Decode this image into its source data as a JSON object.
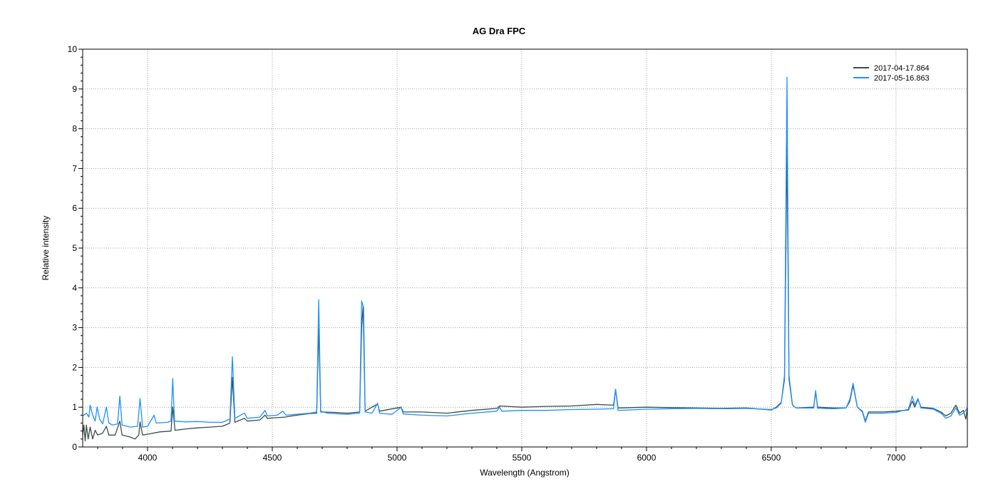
{
  "chart_data": {
    "type": "line",
    "title": "AG Dra   FPC",
    "xlabel": "Wavelength (Angstrom)",
    "ylabel": "Relative intensity",
    "xlim": [
      3740,
      7286
    ],
    "ylim": [
      0,
      10
    ],
    "xticks": [
      4000,
      4500,
      5000,
      5500,
      6000,
      6500,
      7000
    ],
    "xtick_labels": [
      "4000",
      "4500",
      "5000",
      "5500",
      "6000",
      "6500",
      "7000"
    ],
    "yticks": [
      0,
      1,
      2,
      3,
      4,
      5,
      6,
      7,
      8,
      9,
      10
    ],
    "ytick_labels": [
      "0",
      "1",
      "2",
      "3",
      "4",
      "5",
      "6",
      "7",
      "8",
      "9",
      "10"
    ],
    "grid": true,
    "legend_position": "top-right",
    "series": [
      {
        "name": "2017-04-17.864",
        "color": "#3a4d4a",
        "points": [
          [
            3740,
            0.3
          ],
          [
            3745,
            0.55
          ],
          [
            3750,
            0.15
          ],
          [
            3755,
            0.55
          ],
          [
            3762,
            0.2
          ],
          [
            3770,
            0.5
          ],
          [
            3780,
            0.2
          ],
          [
            3790,
            0.42
          ],
          [
            3800,
            0.3
          ],
          [
            3820,
            0.35
          ],
          [
            3835,
            0.52
          ],
          [
            3845,
            0.3
          ],
          [
            3870,
            0.3
          ],
          [
            3889,
            0.65
          ],
          [
            3898,
            0.3
          ],
          [
            3930,
            0.25
          ],
          [
            3950,
            0.2
          ],
          [
            3965,
            0.3
          ],
          [
            3970,
            0.63
          ],
          [
            3980,
            0.3
          ],
          [
            4000,
            0.32
          ],
          [
            4050,
            0.38
          ],
          [
            4094,
            0.4
          ],
          [
            4101,
            1.0
          ],
          [
            4110,
            0.42
          ],
          [
            4150,
            0.45
          ],
          [
            4200,
            0.48
          ],
          [
            4250,
            0.5
          ],
          [
            4300,
            0.52
          ],
          [
            4330,
            0.6
          ],
          [
            4340,
            1.75
          ],
          [
            4350,
            0.62
          ],
          [
            4388,
            0.72
          ],
          [
            4400,
            0.65
          ],
          [
            4450,
            0.68
          ],
          [
            4471,
            0.8
          ],
          [
            4480,
            0.72
          ],
          [
            4550,
            0.75
          ],
          [
            4600,
            0.8
          ],
          [
            4650,
            0.84
          ],
          [
            4678,
            0.85
          ],
          [
            4686,
            3.05
          ],
          [
            4694,
            0.88
          ],
          [
            4750,
            0.87
          ],
          [
            4800,
            0.85
          ],
          [
            4850,
            0.88
          ],
          [
            4858,
            3.0
          ],
          [
            4864,
            3.55
          ],
          [
            4872,
            0.9
          ],
          [
            4922,
            1.08
          ],
          [
            4930,
            0.9
          ],
          [
            5016,
            1.0
          ],
          [
            5025,
            0.88
          ],
          [
            5100,
            0.88
          ],
          [
            5200,
            0.85
          ],
          [
            5300,
            0.92
          ],
          [
            5400,
            0.97
          ],
          [
            5411,
            1.03
          ],
          [
            5500,
            1.0
          ],
          [
            5600,
            1.02
          ],
          [
            5700,
            1.03
          ],
          [
            5800,
            1.07
          ],
          [
            5868,
            1.05
          ],
          [
            5876,
            1.45
          ],
          [
            5886,
            0.98
          ],
          [
            6000,
            1.0
          ],
          [
            6100,
            0.99
          ],
          [
            6200,
            0.98
          ],
          [
            6300,
            0.97
          ],
          [
            6400,
            0.98
          ],
          [
            6500,
            0.93
          ],
          [
            6520,
            1.0
          ],
          [
            6540,
            1.12
          ],
          [
            6553,
            1.7
          ],
          [
            6563,
            7.65
          ],
          [
            6571,
            1.7
          ],
          [
            6585,
            1.05
          ],
          [
            6600,
            0.98
          ],
          [
            6670,
            1.0
          ],
          [
            6678,
            1.38
          ],
          [
            6686,
            1.0
          ],
          [
            6750,
            0.98
          ],
          [
            6800,
            0.98
          ],
          [
            6815,
            1.15
          ],
          [
            6828,
            1.55
          ],
          [
            6845,
            1.0
          ],
          [
            6865,
            0.9
          ],
          [
            6877,
            0.65
          ],
          [
            6890,
            0.88
          ],
          [
            6950,
            0.88
          ],
          [
            7000,
            0.9
          ],
          [
            7050,
            0.93
          ],
          [
            7065,
            1.15
          ],
          [
            7075,
            1.0
          ],
          [
            7088,
            1.2
          ],
          [
            7100,
            1.0
          ],
          [
            7150,
            0.97
          ],
          [
            7180,
            0.88
          ],
          [
            7200,
            0.78
          ],
          [
            7220,
            0.85
          ],
          [
            7240,
            1.05
          ],
          [
            7255,
            0.85
          ],
          [
            7270,
            0.92
          ],
          [
            7280,
            0.7
          ],
          [
            7286,
            0.98
          ]
        ]
      },
      {
        "name": "2017-05-16.863",
        "color": "#1e90ff",
        "points": [
          [
            3740,
            0.78
          ],
          [
            3755,
            0.85
          ],
          [
            3765,
            0.75
          ],
          [
            3770,
            1.05
          ],
          [
            3780,
            0.8
          ],
          [
            3790,
            0.65
          ],
          [
            3798,
            1.0
          ],
          [
            3808,
            0.7
          ],
          [
            3820,
            0.58
          ],
          [
            3835,
            1.0
          ],
          [
            3845,
            0.6
          ],
          [
            3860,
            0.55
          ],
          [
            3880,
            0.58
          ],
          [
            3889,
            1.28
          ],
          [
            3898,
            0.55
          ],
          [
            3930,
            0.5
          ],
          [
            3960,
            0.52
          ],
          [
            3970,
            1.22
          ],
          [
            3980,
            0.5
          ],
          [
            4000,
            0.52
          ],
          [
            4026,
            0.8
          ],
          [
            4035,
            0.6
          ],
          [
            4080,
            0.62
          ],
          [
            4094,
            0.65
          ],
          [
            4101,
            1.72
          ],
          [
            4108,
            0.65
          ],
          [
            4150,
            0.63
          ],
          [
            4200,
            0.64
          ],
          [
            4250,
            0.62
          ],
          [
            4300,
            0.62
          ],
          [
            4330,
            0.7
          ],
          [
            4340,
            2.27
          ],
          [
            4350,
            0.72
          ],
          [
            4388,
            0.85
          ],
          [
            4400,
            0.72
          ],
          [
            4450,
            0.75
          ],
          [
            4471,
            0.92
          ],
          [
            4480,
            0.78
          ],
          [
            4520,
            0.8
          ],
          [
            4542,
            0.9
          ],
          [
            4555,
            0.8
          ],
          [
            4600,
            0.82
          ],
          [
            4650,
            0.85
          ],
          [
            4678,
            0.88
          ],
          [
            4686,
            3.7
          ],
          [
            4694,
            0.9
          ],
          [
            4720,
            0.85
          ],
          [
            4800,
            0.82
          ],
          [
            4850,
            0.85
          ],
          [
            4858,
            3.67
          ],
          [
            4866,
            3.5
          ],
          [
            4872,
            0.88
          ],
          [
            4900,
            0.85
          ],
          [
            4922,
            1.1
          ],
          [
            4930,
            0.85
          ],
          [
            4980,
            0.82
          ],
          [
            5016,
            1.0
          ],
          [
            5025,
            0.83
          ],
          [
            5100,
            0.8
          ],
          [
            5200,
            0.78
          ],
          [
            5300,
            0.85
          ],
          [
            5400,
            0.9
          ],
          [
            5411,
            1.0
          ],
          [
            5420,
            0.9
          ],
          [
            5500,
            0.92
          ],
          [
            5600,
            0.92
          ],
          [
            5700,
            0.94
          ],
          [
            5800,
            0.95
          ],
          [
            5868,
            0.96
          ],
          [
            5876,
            1.45
          ],
          [
            5886,
            0.92
          ],
          [
            6000,
            0.95
          ],
          [
            6100,
            0.96
          ],
          [
            6200,
            0.97
          ],
          [
            6300,
            0.96
          ],
          [
            6400,
            0.97
          ],
          [
            6500,
            0.94
          ],
          [
            6520,
            0.98
          ],
          [
            6540,
            1.1
          ],
          [
            6553,
            1.8
          ],
          [
            6563,
            9.3
          ],
          [
            6571,
            1.8
          ],
          [
            6585,
            1.05
          ],
          [
            6600,
            0.98
          ],
          [
            6670,
            0.98
          ],
          [
            6678,
            1.42
          ],
          [
            6686,
            0.97
          ],
          [
            6750,
            0.96
          ],
          [
            6800,
            0.98
          ],
          [
            6815,
            1.2
          ],
          [
            6828,
            1.6
          ],
          [
            6845,
            1.0
          ],
          [
            6865,
            0.88
          ],
          [
            6877,
            0.62
          ],
          [
            6890,
            0.85
          ],
          [
            6950,
            0.85
          ],
          [
            7000,
            0.87
          ],
          [
            7050,
            0.95
          ],
          [
            7065,
            1.28
          ],
          [
            7075,
            1.05
          ],
          [
            7088,
            1.22
          ],
          [
            7100,
            0.98
          ],
          [
            7150,
            0.95
          ],
          [
            7180,
            0.85
          ],
          [
            7200,
            0.72
          ],
          [
            7220,
            0.78
          ],
          [
            7240,
            0.98
          ],
          [
            7255,
            0.8
          ],
          [
            7270,
            0.85
          ],
          [
            7286,
            0.98
          ]
        ]
      }
    ]
  }
}
